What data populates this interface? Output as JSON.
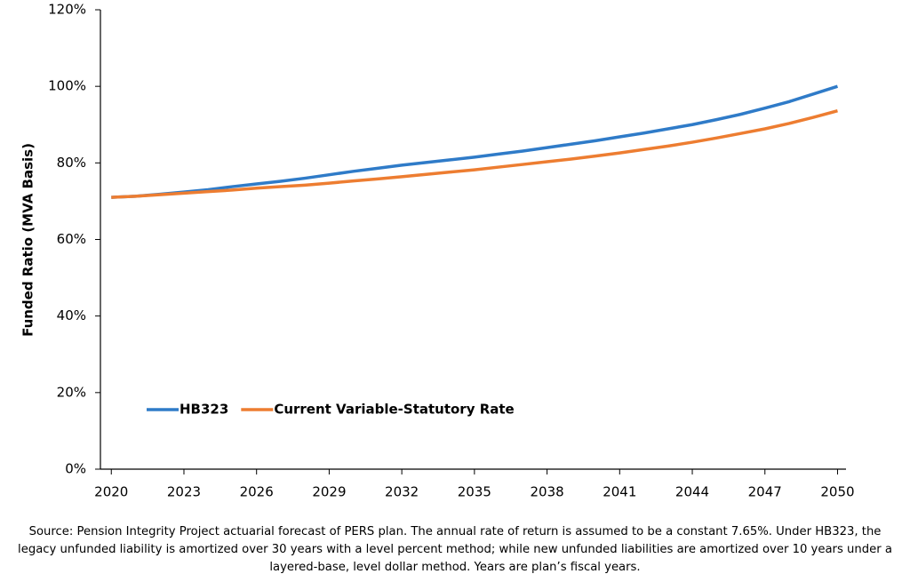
{
  "chart_data": {
    "type": "line",
    "y_label": "Funded Ratio (MVA Basis)",
    "x": [
      2020,
      2021,
      2022,
      2023,
      2024,
      2025,
      2026,
      2027,
      2028,
      2029,
      2030,
      2031,
      2032,
      2033,
      2034,
      2035,
      2036,
      2037,
      2038,
      2039,
      2040,
      2041,
      2042,
      2043,
      2044,
      2045,
      2046,
      2047,
      2048,
      2049,
      2050
    ],
    "series": [
      {
        "name": "HB323",
        "color": "#2f7bc8",
        "values": [
          71.0,
          71.3,
          71.8,
          72.4,
          73.0,
          73.8,
          74.5,
          75.2,
          76.0,
          76.9,
          77.8,
          78.6,
          79.4,
          80.1,
          80.8,
          81.5,
          82.3,
          83.1,
          84.0,
          84.9,
          85.8,
          86.8,
          87.8,
          88.9,
          90.0,
          91.3,
          92.7,
          94.3,
          96.0,
          98.0,
          100.0
        ]
      },
      {
        "name": "Current Variable-Statutory Rate",
        "color": "#ed7d31",
        "values": [
          71.0,
          71.3,
          71.7,
          72.1,
          72.5,
          72.9,
          73.4,
          73.8,
          74.2,
          74.7,
          75.3,
          75.8,
          76.4,
          77.0,
          77.6,
          78.2,
          78.9,
          79.6,
          80.3,
          81.0,
          81.8,
          82.6,
          83.5,
          84.4,
          85.4,
          86.5,
          87.7,
          88.9,
          90.3,
          91.9,
          93.6
        ]
      }
    ],
    "xlim": [
      2019.55,
      2050.35
    ],
    "xticks": [
      2020,
      2023,
      2026,
      2029,
      2032,
      2035,
      2038,
      2041,
      2044,
      2047,
      2050
    ],
    "ylim": [
      0,
      120
    ],
    "yticks": [
      {
        "value": 0,
        "label": "0%"
      },
      {
        "value": 20,
        "label": "20%"
      },
      {
        "value": 40,
        "label": "40%"
      },
      {
        "value": 60,
        "label": "60%"
      },
      {
        "value": 80,
        "label": "80%"
      },
      {
        "value": 100,
        "label": "100%"
      },
      {
        "value": 120,
        "label": "120%"
      }
    ],
    "grid": false,
    "legend": "lower left",
    "source": "Source: Pension Integrity Project actuarial forecast of PERS plan. The annual rate of return is assumed to be a constant 7.65%. Under HB323, the legacy unfunded liability is amortized over 30 years with a level percent method; while new unfunded liabilities are amortized over 10 years under a layered-base, level dollar method. Years are plan’s fiscal years."
  }
}
